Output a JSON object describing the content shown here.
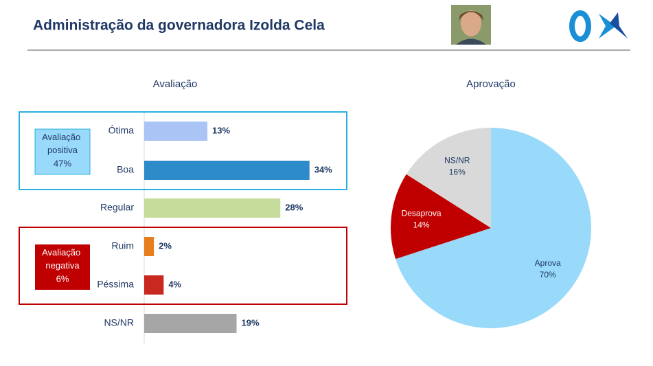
{
  "header": {
    "title": "Administração da governadora Izolda Cela"
  },
  "chart_data": [
    {
      "type": "hbar",
      "title": "Avaliação",
      "categories": [
        "Ótima",
        "Boa",
        "Regular",
        "Ruim",
        "Péssima",
        "NS/NR"
      ],
      "values": [
        13,
        34,
        28,
        2,
        4,
        19
      ],
      "value_labels": [
        "13%",
        "34%",
        "28%",
        "2%",
        "4%",
        "19%"
      ],
      "colors": [
        "#a9c4f5",
        "#2e8bc9",
        "#c5dc9a",
        "#e87d1e",
        "#c8281f",
        "#a6a6a6"
      ],
      "groups": [
        {
          "name": "Avaliação positiva",
          "share": "47%",
          "color": "#2ab0e0",
          "fill": "#99d9f9",
          "text_color": "#1f3864"
        },
        {
          "name": "Avaliação negativa",
          "share": "6%",
          "color": "#c00000",
          "fill": "#c00000",
          "text_color": "#ffffff"
        }
      ]
    },
    {
      "type": "pie",
      "title": "Aprovação",
      "categories": [
        "Aprova",
        "Desaprova",
        "NS/NR"
      ],
      "values": [
        70,
        14,
        16
      ],
      "value_labels": [
        "70%",
        "14%",
        "16%"
      ],
      "colors": [
        "#99d9f9",
        "#c00000",
        "#d9d9d9"
      ],
      "label_colors": [
        "#1f3864",
        "#ffffff",
        "#1f3864"
      ]
    }
  ]
}
